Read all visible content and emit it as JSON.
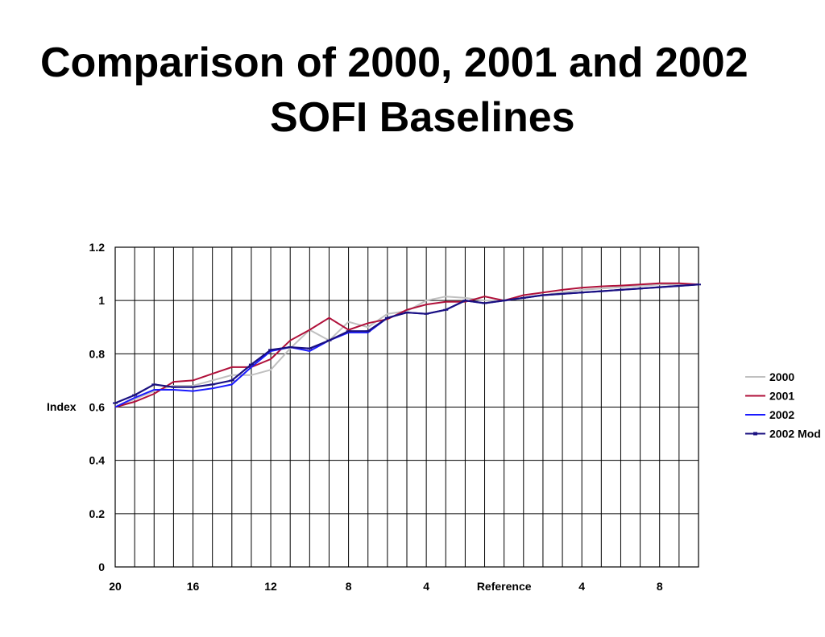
{
  "slide": {
    "title_line1": "Comparison of 2000, 2001 and 2002",
    "title_line2": "SOFI Baselines"
  },
  "chart_data": {
    "type": "line",
    "title": "",
    "xlabel": "",
    "ylabel": "Index",
    "ylim": [
      0,
      1.2
    ],
    "yticks": [
      "0",
      "0.2",
      "0.4",
      "0.6",
      "0.8",
      "1",
      "1.2"
    ],
    "x_positions_count": 31,
    "xtick_labels": [
      {
        "index": 0,
        "label": "20"
      },
      {
        "index": 4,
        "label": "16"
      },
      {
        "index": 8,
        "label": "12"
      },
      {
        "index": 12,
        "label": "8"
      },
      {
        "index": 16,
        "label": "4"
      },
      {
        "index": 20,
        "label": "Reference"
      },
      {
        "index": 24,
        "label": "4"
      },
      {
        "index": 28,
        "label": "8"
      }
    ],
    "grid": true,
    "legend_position": "right",
    "series": [
      {
        "name": "2000",
        "color": "#c0c0c0",
        "marker": false,
        "values": [
          0.6,
          0.63,
          0.66,
          0.68,
          0.68,
          0.7,
          0.72,
          0.72,
          0.74,
          0.82,
          0.89,
          0.85,
          0.92,
          0.9,
          0.95,
          0.96,
          1.0,
          1.015,
          1.01,
          1.0,
          1.0,
          1.01,
          1.02,
          1.03,
          1.04,
          1.045,
          1.05,
          1.055,
          1.06,
          1.06,
          1.06
        ]
      },
      {
        "name": "2001",
        "color": "#b0103a",
        "marker": false,
        "values": [
          0.6,
          0.62,
          0.65,
          0.695,
          0.7,
          0.725,
          0.75,
          0.75,
          0.78,
          0.85,
          0.89,
          0.935,
          0.89,
          0.915,
          0.93,
          0.965,
          0.985,
          0.995,
          0.995,
          1.015,
          1.0,
          1.02,
          1.03,
          1.04,
          1.048,
          1.053,
          1.056,
          1.06,
          1.065,
          1.065,
          1.06
        ]
      },
      {
        "name": "2002",
        "color": "#1a1aff",
        "marker": false,
        "values": [
          0.6,
          0.635,
          0.665,
          0.665,
          0.66,
          0.67,
          0.685,
          0.75,
          0.81,
          0.825,
          0.81,
          0.85,
          0.88,
          0.88,
          0.935,
          0.955,
          0.95,
          0.965,
          1.0,
          0.99,
          1.0,
          1.01,
          1.02,
          1.025,
          1.03,
          1.035,
          1.04,
          1.045,
          1.05,
          1.055,
          1.06
        ]
      },
      {
        "name": "2002 Mod",
        "color": "#1a1080",
        "marker": true,
        "values": [
          0.615,
          0.645,
          0.685,
          0.675,
          0.675,
          0.685,
          0.7,
          0.76,
          0.815,
          0.825,
          0.82,
          0.85,
          0.885,
          0.885,
          0.935,
          0.955,
          0.95,
          0.965,
          1.0,
          0.99,
          1.0,
          1.01,
          1.02,
          1.025,
          1.03,
          1.035,
          1.04,
          1.045,
          1.05,
          1.055,
          1.06
        ]
      }
    ]
  }
}
